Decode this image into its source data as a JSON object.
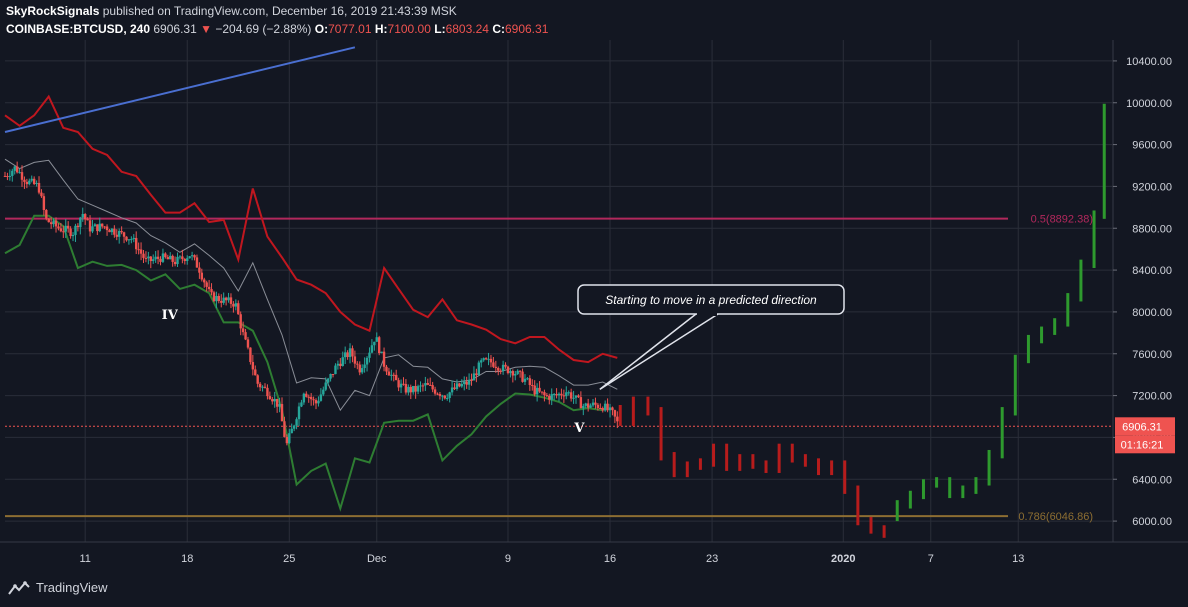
{
  "header": {
    "author": "SkyRockSignals",
    "published_text": "published on TradingView.com, December 16, 2019 21:43:39 MSK",
    "symbol": "COINBASE:BTCUSD, 240",
    "last": "6906.31",
    "change_arrow": "▼",
    "change": "−204.69 (−2.88%)",
    "o_label": "O:",
    "o": "7077.01",
    "h_label": "H:",
    "h": "7100.00",
    "l_label": "L:",
    "l": "6803.24",
    "c_label": "C:",
    "c": "6906.31"
  },
  "footer": {
    "brand": "TradingView",
    "logo_icon": "tradingview-logo-icon"
  },
  "chart_data": {
    "type": "candlestick",
    "title": "",
    "y_ticks": [
      "10400.00",
      "10000.00",
      "9600.00",
      "9200.00",
      "8800.00",
      "8400.00",
      "8000.00",
      "7600.00",
      "7200.00",
      "6800.00",
      "6400.00",
      "6000.00"
    ],
    "y_tick_values": [
      10400,
      10000,
      9600,
      9200,
      8800,
      8400,
      8000,
      7600,
      7200,
      6800,
      6400,
      6000
    ],
    "ylim": [
      5800,
      10600
    ],
    "x_ticks": [
      {
        "label": "11",
        "day": 11
      },
      {
        "label": "18",
        "day": 18
      },
      {
        "label": "25",
        "day": 25
      },
      {
        "label": "Dec",
        "day": 31
      },
      {
        "label": "9",
        "day": 40
      },
      {
        "label": "16",
        "day": 47
      },
      {
        "label": "23",
        "day": 54
      },
      {
        "label": "2020",
        "day": 63
      },
      {
        "label": "7",
        "day": 69
      },
      {
        "label": "13",
        "day": 75
      }
    ],
    "x_range_days": [
      5.5,
      81.5
    ],
    "last_price": {
      "value": 6906.31,
      "label": "6906.31",
      "countdown": "01:16:21",
      "color": "#ef5350"
    },
    "fib_levels": [
      {
        "label": "0.5(8892.38)",
        "value": 8892.38,
        "color": "#b2285c"
      },
      {
        "label": "0.786(6046.86)",
        "value": 6046.86,
        "color": "#8d6e32"
      }
    ],
    "trendline": {
      "color": "#4a6fd1",
      "points": [
        {
          "day": 5.5,
          "value": 9720
        },
        {
          "day": 29.5,
          "value": 10530
        }
      ]
    },
    "wave_labels": [
      {
        "label": "IV",
        "day": 16.8,
        "value": 7930
      },
      {
        "label": "V",
        "day": 44.9,
        "value": 6850
      }
    ],
    "annotation": {
      "text": "Starting to move in a predicted direction",
      "target": {
        "day": 46.3,
        "value": 7260
      }
    },
    "upper_band": {
      "color": "#c0171f",
      "points": [
        [
          5.5,
          9880
        ],
        [
          6.5,
          9780
        ],
        [
          7.5,
          9880
        ],
        [
          8.5,
          10060
        ],
        [
          9.5,
          9760
        ],
        [
          10.5,
          9720
        ],
        [
          11.5,
          9560
        ],
        [
          12.5,
          9500
        ],
        [
          13.5,
          9340
        ],
        [
          14.5,
          9300
        ],
        [
          15.5,
          9120
        ],
        [
          16.5,
          8950
        ],
        [
          17.5,
          8950
        ],
        [
          18.5,
          9040
        ],
        [
          19.5,
          8860
        ],
        [
          20.5,
          8880
        ],
        [
          21.5,
          8500
        ],
        [
          22.5,
          9180
        ],
        [
          23.5,
          8720
        ],
        [
          24.5,
          8520
        ],
        [
          25.5,
          8310
        ],
        [
          26.5,
          8260
        ],
        [
          27.5,
          8180
        ],
        [
          28.5,
          8000
        ],
        [
          29.5,
          7880
        ],
        [
          30.5,
          7820
        ],
        [
          31.5,
          8420
        ],
        [
          32.5,
          8220
        ],
        [
          33.5,
          8020
        ],
        [
          34.5,
          7950
        ],
        [
          35.5,
          8120
        ],
        [
          36.5,
          7920
        ],
        [
          37.5,
          7880
        ],
        [
          38.5,
          7830
        ],
        [
          39.5,
          7740
        ],
        [
          40.5,
          7700
        ],
        [
          41.5,
          7760
        ],
        [
          42.5,
          7760
        ],
        [
          43.5,
          7640
        ],
        [
          44.5,
          7540
        ],
        [
          45.5,
          7520
        ],
        [
          46.5,
          7600
        ],
        [
          47.5,
          7560
        ]
      ]
    },
    "lower_band": {
      "color": "#2e7d32",
      "points": [
        [
          5.5,
          8560
        ],
        [
          6.5,
          8640
        ],
        [
          7.5,
          8920
        ],
        [
          8.5,
          8920
        ],
        [
          9.5,
          8820
        ],
        [
          10.5,
          8420
        ],
        [
          11.5,
          8480
        ],
        [
          12.5,
          8440
        ],
        [
          13.5,
          8450
        ],
        [
          14.5,
          8400
        ],
        [
          15.5,
          8300
        ],
        [
          16.5,
          8360
        ],
        [
          17.5,
          8220
        ],
        [
          18.5,
          8260
        ],
        [
          19.5,
          8180
        ],
        [
          20.5,
          7900
        ],
        [
          21.5,
          7900
        ],
        [
          22.5,
          7820
        ],
        [
          23.5,
          7520
        ],
        [
          24.5,
          7060
        ],
        [
          25.5,
          6350
        ],
        [
          26.5,
          6480
        ],
        [
          27.5,
          6550
        ],
        [
          28.5,
          6120
        ],
        [
          29.5,
          6600
        ],
        [
          30.5,
          6560
        ],
        [
          31.5,
          6940
        ],
        [
          32.5,
          6960
        ],
        [
          33.5,
          6960
        ],
        [
          34.5,
          7020
        ],
        [
          35.5,
          6580
        ],
        [
          36.5,
          6720
        ],
        [
          37.5,
          6830
        ],
        [
          38.5,
          7000
        ],
        [
          39.5,
          7120
        ],
        [
          40.5,
          7220
        ],
        [
          41.5,
          7210
        ],
        [
          42.5,
          7180
        ],
        [
          43.5,
          7140
        ],
        [
          44.5,
          7060
        ],
        [
          45.5,
          7080
        ],
        [
          46.5,
          7060
        ]
      ]
    },
    "middle_line": {
      "color": "#8a8e97",
      "points": [
        [
          5.5,
          9460
        ],
        [
          6.5,
          9370
        ],
        [
          7.5,
          9430
        ],
        [
          8.5,
          9450
        ],
        [
          9.5,
          9260
        ],
        [
          10.5,
          9080
        ],
        [
          11.5,
          9020
        ],
        [
          12.5,
          8960
        ],
        [
          13.5,
          8900
        ],
        [
          14.5,
          8850
        ],
        [
          15.5,
          8730
        ],
        [
          16.5,
          8660
        ],
        [
          17.5,
          8570
        ],
        [
          18.5,
          8650
        ],
        [
          19.5,
          8540
        ],
        [
          20.5,
          8420
        ],
        [
          21.5,
          8200
        ],
        [
          22.5,
          8470
        ],
        [
          23.5,
          8120
        ],
        [
          24.5,
          7780
        ],
        [
          25.5,
          7320
        ],
        [
          26.5,
          7370
        ],
        [
          27.5,
          7360
        ],
        [
          28.5,
          7060
        ],
        [
          29.5,
          7250
        ],
        [
          30.5,
          7200
        ],
        [
          31.5,
          7560
        ],
        [
          32.5,
          7590
        ],
        [
          33.5,
          7480
        ],
        [
          34.5,
          7470
        ],
        [
          35.5,
          7360
        ],
        [
          36.5,
          7330
        ],
        [
          37.5,
          7350
        ],
        [
          38.5,
          7430
        ],
        [
          39.5,
          7430
        ],
        [
          40.5,
          7470
        ],
        [
          41.5,
          7480
        ],
        [
          42.5,
          7470
        ],
        [
          43.5,
          7390
        ],
        [
          44.5,
          7300
        ],
        [
          45.5,
          7300
        ],
        [
          46.5,
          7330
        ],
        [
          47.5,
          7260
        ]
      ]
    },
    "candles_anchor": [
      [
        5.5,
        9300
      ],
      [
        6.2,
        9380
      ],
      [
        7.0,
        9250
      ],
      [
        7.8,
        9200
      ],
      [
        8.3,
        8880
      ],
      [
        9.2,
        8800
      ],
      [
        10.2,
        8760
      ],
      [
        10.8,
        8950
      ],
      [
        11.3,
        8800
      ],
      [
        12.3,
        8820
      ],
      [
        13.2,
        8760
      ],
      [
        14.2,
        8700
      ],
      [
        15.2,
        8480
      ],
      [
        16.2,
        8520
      ],
      [
        17.2,
        8480
      ],
      [
        18.2,
        8550
      ],
      [
        18.8,
        8420
      ],
      [
        19.6,
        8150
      ],
      [
        20.5,
        8110
      ],
      [
        21.3,
        8080
      ],
      [
        21.8,
        7800
      ],
      [
        22.3,
        7560
      ],
      [
        22.8,
        7320
      ],
      [
        23.5,
        7240
      ],
      [
        24.3,
        7100
      ],
      [
        24.8,
        6720
      ],
      [
        25.3,
        6920
      ],
      [
        26.0,
        7250
      ],
      [
        26.8,
        7120
      ],
      [
        27.5,
        7300
      ],
      [
        28.3,
        7500
      ],
      [
        29.2,
        7620
      ],
      [
        29.8,
        7450
      ],
      [
        30.4,
        7600
      ],
      [
        30.9,
        7770
      ],
      [
        31.5,
        7500
      ],
      [
        32.2,
        7350
      ],
      [
        32.9,
        7260
      ],
      [
        33.6,
        7250
      ],
      [
        34.3,
        7300
      ],
      [
        35.0,
        7250
      ],
      [
        35.7,
        7200
      ],
      [
        36.5,
        7280
      ],
      [
        37.4,
        7330
      ],
      [
        38.2,
        7520
      ],
      [
        38.9,
        7520
      ],
      [
        39.6,
        7460
      ],
      [
        40.3,
        7440
      ],
      [
        41.2,
        7350
      ],
      [
        41.8,
        7250
      ],
      [
        42.6,
        7190
      ],
      [
        43.3,
        7200
      ],
      [
        44.0,
        7240
      ],
      [
        44.6,
        7170
      ],
      [
        45.2,
        7100
      ],
      [
        45.9,
        7110
      ],
      [
        46.5,
        7100
      ],
      [
        47.2,
        7020
      ],
      [
        47.6,
        6910
      ]
    ],
    "forecast_red": [
      [
        47.7,
        6950
      ],
      [
        48.6,
        7150
      ],
      [
        49.6,
        7050
      ],
      [
        50.5,
        6620
      ],
      [
        51.4,
        6460
      ],
      [
        52.3,
        6530
      ],
      [
        53.2,
        6560
      ],
      [
        54.1,
        6700
      ],
      [
        55.0,
        6520
      ],
      [
        55.9,
        6600
      ],
      [
        56.8,
        6540
      ],
      [
        57.7,
        6500
      ],
      [
        58.6,
        6700
      ],
      [
        59.5,
        6600
      ],
      [
        60.4,
        6560
      ],
      [
        61.3,
        6480
      ],
      [
        62.2,
        6540
      ],
      [
        63.1,
        6300
      ],
      [
        64.0,
        6000
      ],
      [
        64.9,
        5920
      ],
      [
        65.8,
        5880
      ]
    ],
    "forecast_green": [
      [
        66.7,
        6160
      ],
      [
        67.6,
        6250
      ],
      [
        68.5,
        6360
      ],
      [
        69.4,
        6380
      ],
      [
        70.3,
        6260
      ],
      [
        71.2,
        6300
      ],
      [
        72.1,
        6380
      ],
      [
        73.0,
        6640
      ],
      [
        73.9,
        7050
      ],
      [
        74.8,
        7550
      ],
      [
        75.7,
        7740
      ],
      [
        76.6,
        7820
      ],
      [
        77.5,
        7900
      ],
      [
        78.4,
        8140
      ],
      [
        79.3,
        8460
      ],
      [
        80.2,
        8930
      ],
      [
        80.9,
        9950
      ]
    ]
  }
}
